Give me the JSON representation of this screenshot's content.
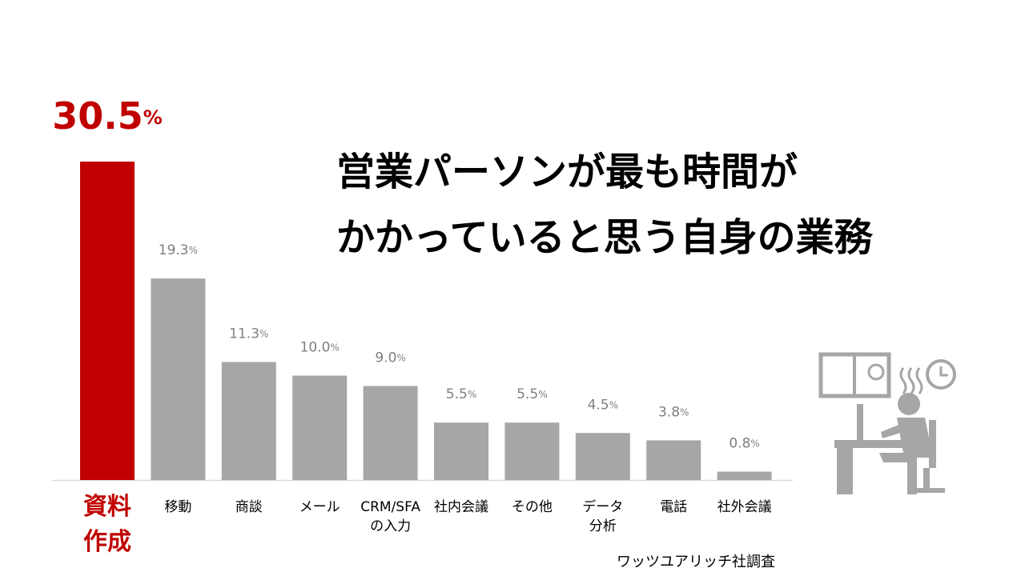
{
  "chart_data": {
    "type": "bar",
    "title": "営業パーソンが最も時間が\nかかっていると思う自身の業務",
    "categories": [
      "資料\n作成",
      "移動",
      "商談",
      "メール",
      "CRM/SFA\nの入力",
      "社内会議",
      "その他",
      "データ\n分析",
      "電話",
      "社外会議"
    ],
    "values": [
      30.5,
      19.3,
      11.3,
      10.0,
      9.0,
      5.5,
      5.5,
      4.5,
      3.8,
      0.8
    ],
    "value_labels": [
      "30.5%",
      "19.3%",
      "11.3%",
      "10.0%",
      "9.0%",
      "5.5%",
      "5.5%",
      "4.5%",
      "3.8%",
      "0.8%"
    ],
    "colors": [
      "#c00000",
      "#a6a6a6",
      "#a6a6a6",
      "#a6a6a6",
      "#a6a6a6",
      "#a6a6a6",
      "#a6a6a6",
      "#a6a6a6",
      "#a6a6a6",
      "#a6a6a6"
    ],
    "ylim": [
      0,
      30.5
    ],
    "source": "ワッツユアリッチ社調査"
  }
}
